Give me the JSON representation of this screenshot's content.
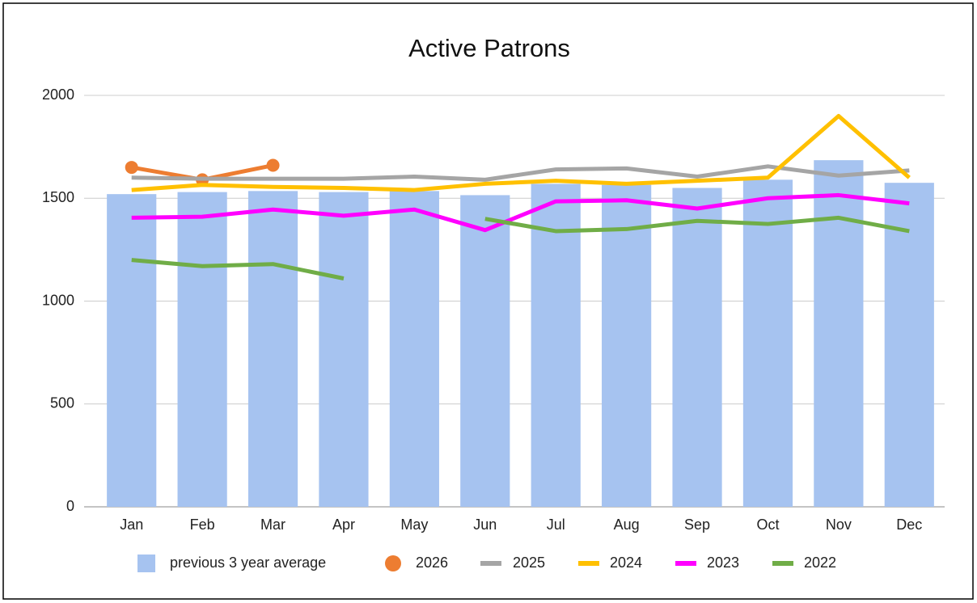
{
  "chart_data": {
    "type": "combo",
    "title": "Active Patrons",
    "categories": [
      "Jan",
      "Feb",
      "Mar",
      "Apr",
      "May",
      "Jun",
      "Jul",
      "Aug",
      "Sep",
      "Oct",
      "Nov",
      "Dec"
    ],
    "ylim": [
      0,
      2000
    ],
    "yticks": [
      0,
      500,
      1000,
      1500,
      2000
    ],
    "grid": true,
    "legend": "bottom",
    "series": [
      {
        "name": "previous 3 year average",
        "type": "bar",
        "color": "#a6c3f0",
        "values": [
          1520,
          1530,
          1535,
          1530,
          1535,
          1515,
          1570,
          1565,
          1550,
          1590,
          1685,
          1575
        ]
      },
      {
        "name": "2026",
        "type": "line",
        "markers": true,
        "color": "#ed7d31",
        "values": [
          1650,
          1590,
          1660,
          null,
          null,
          null,
          null,
          null,
          null,
          null,
          null,
          null
        ]
      },
      {
        "name": "2025",
        "type": "line",
        "color": "#a5a5a5",
        "values": [
          1600,
          1595,
          1595,
          1595,
          1605,
          1590,
          1640,
          1645,
          1605,
          1655,
          1610,
          1635
        ]
      },
      {
        "name": "2024",
        "type": "line",
        "color": "#ffc000",
        "values": [
          1540,
          1565,
          1555,
          1550,
          1540,
          1570,
          1585,
          1570,
          1585,
          1600,
          1900,
          1600
        ]
      },
      {
        "name": "2023",
        "type": "line",
        "color": "#ff00ff",
        "values": [
          1405,
          1410,
          1445,
          1415,
          1445,
          1345,
          1485,
          1490,
          1450,
          1500,
          1515,
          1475
        ]
      },
      {
        "name": "2022",
        "type": "line",
        "color": "#70ad47",
        "values": [
          1200,
          1170,
          1180,
          1110,
          null,
          1400,
          1340,
          1350,
          1390,
          1375,
          1405,
          1340
        ]
      }
    ]
  }
}
